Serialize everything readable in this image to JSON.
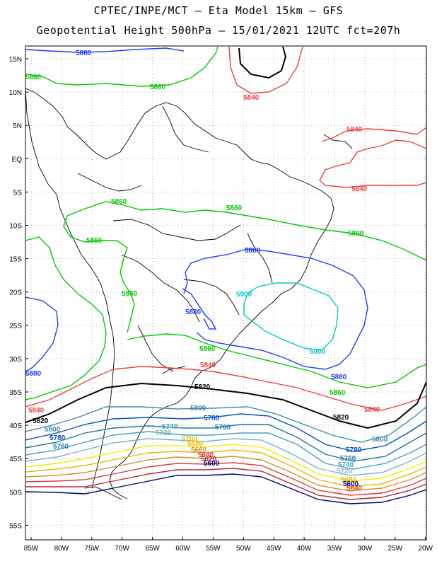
{
  "title_line1": "CPTEC/INPE/MCT –  Eta Model 15km – GFS",
  "title_line2": "Geopotential Height 500hPa – 15/01/2021 12UTC fct=207h",
  "lat_labels": [
    "15N",
    "10N",
    "5N",
    "EQ",
    "5S",
    "10S",
    "15S",
    "20S",
    "25S",
    "30S",
    "35S",
    "40S",
    "45S",
    "50S",
    "55S"
  ],
  "lon_labels": [
    "85W",
    "80W",
    "75W",
    "70W",
    "65W",
    "60W",
    "55W",
    "50W",
    "45W",
    "40W",
    "35W",
    "30W",
    "25W",
    "20W"
  ],
  "contour_labels": {
    "c5880_top": "5880",
    "c5860_nw": "5860",
    "c5860_top": "5860",
    "c5840_top": "5840",
    "c5840_e1": "5840",
    "c5840_e2": "5840",
    "c5860_mid1": "5860",
    "c5860_mid2": "5860",
    "c5860_mid3": "5860",
    "c5860_w": "5860",
    "c5860_andes": "5860",
    "c5880_mid": "5880",
    "c5880_w": "5880",
    "c5880_sw": "5880",
    "c5900_a": "5900",
    "c5900_b": "5900",
    "c5860_s": "5860",
    "c5880_s": "5880",
    "c5840_s": "5840",
    "c5860_se": "5860",
    "c5840_w": "5840",
    "c5820_a": "5820",
    "c5820_b": "5820",
    "c5820_w": "5820",
    "c5840_se": "5840",
    "c5800_a": "5800",
    "c5800_w": "5800",
    "c5800_e": "5800",
    "c5780_a": "5780",
    "c5780_w": "5780",
    "c5780_e": "5780",
    "c5760_a": "5760",
    "c5760_w": "5760",
    "c5760_e": "5760",
    "c5740_a": "5740",
    "c5740_e": "5740",
    "c5720_a": "5720",
    "c5720_e": "5720",
    "c5700_a": "5700",
    "c5680_a": "5680",
    "c5680_e": "5680",
    "c5660_a": "5660",
    "c5640_a": "5640",
    "c5640_e": "5640",
    "c5620_a": "5620",
    "c5600_a": "5600",
    "c5600_e": "5600"
  },
  "colors": {
    "c5900": "#00c8c8",
    "c5880": "#1e3cff",
    "c5860": "#00c800",
    "c5840": "#f03c3c",
    "c5820": "#000000",
    "c5800": "#3c8cb4",
    "c5780": "#0050c8",
    "c5760": "#1e78a0",
    "c5740": "#46a0c8",
    "c5720": "#78b4c8",
    "c5700": "#f0f000",
    "c5680": "#f0b400",
    "c5660": "#c89632",
    "c5640": "#dc3c3c",
    "c5620": "#b4283c",
    "c5600": "#000078"
  }
}
